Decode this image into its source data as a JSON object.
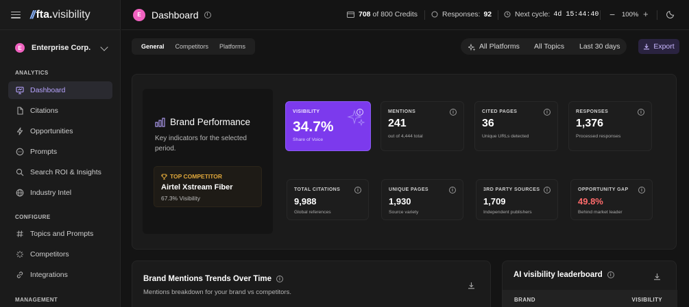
{
  "sidebar": {
    "logo_mark": "//",
    "logo_bold": "fta.",
    "logo_light": "visibility",
    "org": {
      "initial": "E",
      "name": "Enterprise Corp."
    },
    "sections": {
      "analytics": "ANALYTICS",
      "configure": "CONFIGURE",
      "management": "MANAGEMENT"
    },
    "items": [
      {
        "label": "Dashboard",
        "icon": "presentation-icon",
        "active": true
      },
      {
        "label": "Citations",
        "icon": "file-icon"
      },
      {
        "label": "Opportunities",
        "icon": "lightning-icon"
      },
      {
        "label": "Prompts",
        "icon": "chat-icon"
      },
      {
        "label": "Search ROI & Insights",
        "icon": "search-icon"
      },
      {
        "label": "Industry Intel",
        "icon": "globe-icon"
      },
      {
        "label": "Topics and Prompts",
        "icon": "hash-icon"
      },
      {
        "label": "Competitors",
        "icon": "sparkle-icon"
      },
      {
        "label": "Integrations",
        "icon": "link-icon"
      }
    ]
  },
  "header": {
    "title": "Dashboard",
    "avatar_initial": "E",
    "credits_used": "708",
    "credits_of": "of",
    "credits_total": "800 Credits",
    "responses_label": "Responses:",
    "responses_value": "92",
    "next_cycle_label": "Next cycle:",
    "next_cycle_value": "4d 15:44:40",
    "zoom": "100%"
  },
  "tabs": [
    "General",
    "Competitors",
    "Platforms"
  ],
  "filters": {
    "platforms": "All Platforms",
    "topics": "All Topics",
    "period": "Last 30 days"
  },
  "export_label": "Export",
  "brand_performance": {
    "title": "Brand Performance",
    "description": "Key indicators for the selected period.",
    "top_competitor_label": "TOP COMPETITOR",
    "top_competitor_name": "Airtel Xstream Fiber",
    "top_competitor_sub": "67.3% Visibility"
  },
  "metrics": [
    {
      "label": "VISIBILITY",
      "value": "34.7%",
      "sub": "Share of Voice"
    },
    {
      "label": "MENTIONS",
      "value": "241",
      "sub": "out of 4,444 total"
    },
    {
      "label": "CITED PAGES",
      "value": "36",
      "sub": "Unique URLs detected"
    },
    {
      "label": "RESPONSES",
      "value": "1,376",
      "sub": "Processed responses"
    },
    {
      "label": "TOTAL CITATIONS",
      "value": "9,988",
      "sub": "Global references"
    },
    {
      "label": "UNIQUE PAGES",
      "value": "1,930",
      "sub": "Source variety"
    },
    {
      "label": "3RD PARTY SOURCES",
      "value": "1,709",
      "sub": "Independent publishers"
    },
    {
      "label": "OPPORTUNITY GAP",
      "value": "49.8%",
      "sub": "Behind market leader"
    }
  ],
  "colors": {
    "accent": "#7c3aed",
    "gap": "#ff6b6b",
    "competitor": "#e2a93b"
  },
  "trends": {
    "title": "Brand Mentions Trends Over Time",
    "subtitle": "Mentions breakdown for your brand vs competitors."
  },
  "leaderboard": {
    "title": "AI visibility leaderboard",
    "col_brand": "BRAND",
    "col_visibility": "VISIBILITY"
  }
}
